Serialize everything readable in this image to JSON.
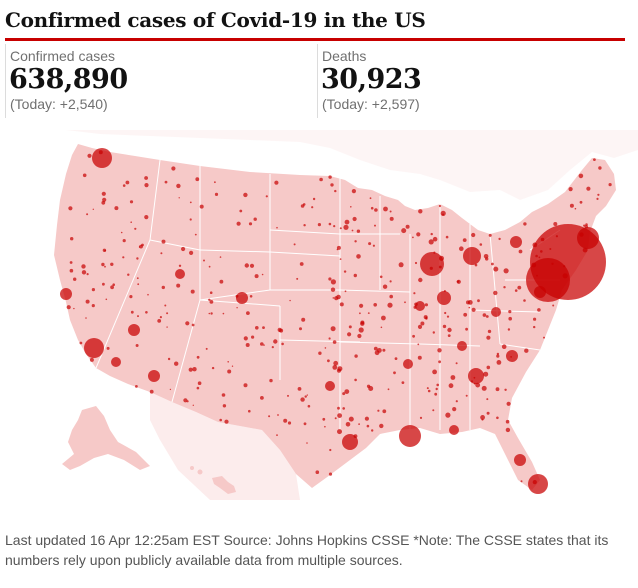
{
  "title": "Confirmed cases of Covid-19 in the US",
  "stats": {
    "cases": {
      "label": "Confirmed cases",
      "value": "638,890",
      "today": "(Today: +2,540)"
    },
    "deaths": {
      "label": "Deaths",
      "value": "30,923",
      "today": "(Today: +2,597)"
    }
  },
  "footer": "Last updated 16 Apr 12:25am EST Source: Johns Hopkins CSSE *Note: The CSSE states that its numbers rely upon publicly available data from multiple sources.",
  "colors": {
    "accent": "#c70000",
    "land": "#f6c9c8",
    "bubble": "#c70000",
    "boundary": "#ffffff"
  }
}
